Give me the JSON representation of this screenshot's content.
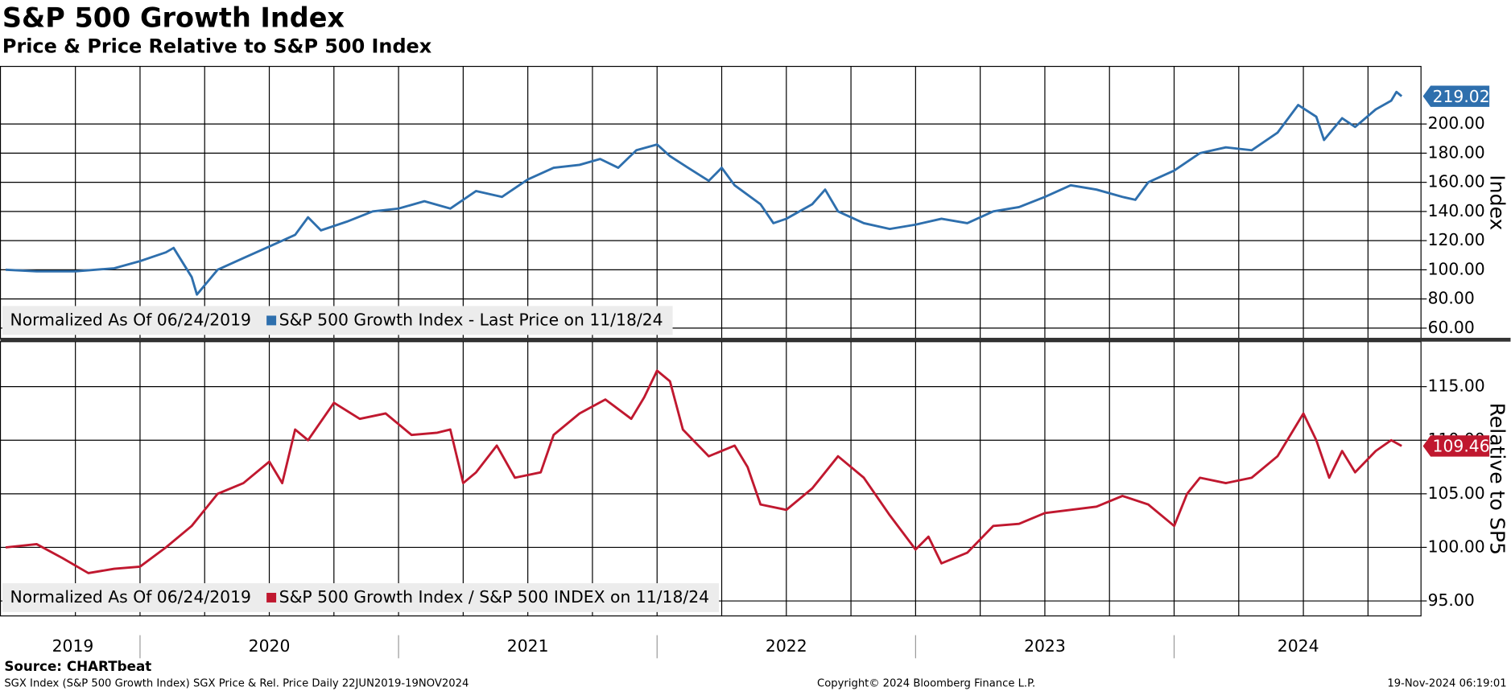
{
  "title": "S&P 500 Growth Index",
  "subtitle": "Price & Price Relative to S&P 500 Index",
  "source": "Source: CHARTbeat",
  "footer_left": "SGX Index (S&P 500 Growth Index) SGX Price & Rel. Price  Daily 22JUN2019-19NOV2024",
  "copyright": "Copyright© 2024 Bloomberg Finance L.P.",
  "timestamp": "19-Nov-2024 06:19:01",
  "x_grid": [
    2019.75,
    2020,
    2020.25,
    2020.5,
    2020.75,
    2021,
    2021.25,
    2021.5,
    2021.75,
    2022,
    2022.25,
    2022.5,
    2022.75,
    2023,
    2023.25,
    2023.5,
    2023.75,
    2024,
    2024.25,
    2024.5,
    2024.75
  ],
  "chart_data": [
    {
      "type": "line",
      "y_label": "Index",
      "note": "Normalized As Of 06/24/2019",
      "xlim": [
        2019.46,
        2024.955
      ],
      "ylim": [
        52.7,
        239.5
      ],
      "yticks": [
        {
          "value": 60,
          "label": "60.00"
        },
        {
          "value": 80,
          "label": "80.00"
        },
        {
          "value": 100,
          "label": "100.00"
        },
        {
          "value": 120,
          "label": "120.00"
        },
        {
          "value": 140,
          "label": "140.00"
        },
        {
          "value": 160,
          "label": "160.00"
        },
        {
          "value": 180,
          "label": "180.00"
        },
        {
          "value": 200,
          "label": "200.00"
        }
      ],
      "x": [
        2019.48,
        2019.6,
        2019.75,
        2019.9,
        2020.0,
        2020.1,
        2020.13,
        2020.2,
        2020.22,
        2020.3,
        2020.4,
        2020.5,
        2020.6,
        2020.65,
        2020.7,
        2020.8,
        2020.9,
        2021.0,
        2021.1,
        2021.2,
        2021.3,
        2021.4,
        2021.5,
        2021.6,
        2021.7,
        2021.78,
        2021.85,
        2021.92,
        2022.0,
        2022.05,
        2022.12,
        2022.2,
        2022.25,
        2022.3,
        2022.4,
        2022.45,
        2022.5,
        2022.6,
        2022.65,
        2022.7,
        2022.8,
        2022.9,
        2023.0,
        2023.1,
        2023.2,
        2023.3,
        2023.4,
        2023.5,
        2023.6,
        2023.7,
        2023.8,
        2023.85,
        2023.9,
        2024.0,
        2024.1,
        2024.2,
        2024.3,
        2024.4,
        2024.48,
        2024.55,
        2024.58,
        2024.65,
        2024.7,
        2024.78,
        2024.84,
        2024.86,
        2024.88
      ],
      "series": [
        {
          "name": "S&P 500 Growth Index - Last Price on 11/18/24",
          "color": "#2e6fad",
          "values": [
            100,
            99,
            99,
            101,
            106,
            112,
            115,
            95,
            83,
            100,
            108,
            116,
            124,
            136,
            127,
            133,
            140,
            142,
            147,
            142,
            154,
            150,
            162,
            170,
            172,
            176,
            170,
            182,
            186,
            178,
            170,
            161,
            170,
            158,
            145,
            132,
            135,
            145,
            155,
            140,
            132,
            128,
            131,
            135,
            132,
            140,
            143,
            150,
            158,
            155,
            150,
            148,
            160,
            168,
            180,
            184,
            182,
            194,
            213,
            205,
            189,
            204,
            198,
            210,
            216,
            222,
            219.02
          ]
        }
      ]
    },
    {
      "type": "line",
      "y_label": "Relative to SP5",
      "note": "Normalized As Of 06/24/2019",
      "xlim": [
        2019.46,
        2024.955
      ],
      "ylim": [
        93.6,
        119.2
      ],
      "yticks": [
        {
          "value": 95,
          "label": "95.00"
        },
        {
          "value": 100,
          "label": "100.00"
        },
        {
          "value": 105,
          "label": "105.00"
        },
        {
          "value": 110,
          "label": "110.00"
        },
        {
          "value": 115,
          "label": "115.00"
        }
      ],
      "xticks": [
        {
          "value": 2019.74,
          "label": "2019"
        },
        {
          "value": 2020.5,
          "label": "2020"
        },
        {
          "value": 2021.5,
          "label": "2021"
        },
        {
          "value": 2022.5,
          "label": "2022"
        },
        {
          "value": 2023.5,
          "label": "2023"
        },
        {
          "value": 2024.48,
          "label": "2024"
        }
      ],
      "x": [
        2019.48,
        2019.6,
        2019.7,
        2019.8,
        2019.9,
        2020.0,
        2020.1,
        2020.2,
        2020.3,
        2020.4,
        2020.5,
        2020.55,
        2020.6,
        2020.65,
        2020.75,
        2020.85,
        2020.95,
        2021.05,
        2021.15,
        2021.2,
        2021.25,
        2021.3,
        2021.38,
        2021.45,
        2021.55,
        2021.6,
        2021.7,
        2021.8,
        2021.9,
        2021.95,
        2022.0,
        2022.05,
        2022.1,
        2022.2,
        2022.3,
        2022.35,
        2022.4,
        2022.5,
        2022.6,
        2022.7,
        2022.8,
        2022.9,
        2023.0,
        2023.05,
        2023.1,
        2023.2,
        2023.3,
        2023.4,
        2023.5,
        2023.6,
        2023.7,
        2023.8,
        2023.9,
        2024.0,
        2024.05,
        2024.1,
        2024.2,
        2024.3,
        2024.4,
        2024.5,
        2024.55,
        2024.6,
        2024.65,
        2024.7,
        2024.78,
        2024.84,
        2024.88
      ],
      "series": [
        {
          "name": "S&P 500 Growth Index / S&P 500 INDEX on 11/18/24",
          "color": "#c0182f",
          "values": [
            100,
            100.3,
            99,
            97.6,
            98,
            98.2,
            100,
            102,
            105,
            106,
            108,
            106,
            111,
            110,
            113.5,
            112,
            112.5,
            110.5,
            110.7,
            111,
            106,
            107,
            109.5,
            106.5,
            107,
            110.5,
            112.5,
            113.8,
            112,
            114,
            116.5,
            115.5,
            111,
            108.5,
            109.5,
            107.5,
            104,
            103.5,
            105.5,
            108.5,
            106.5,
            103,
            99.8,
            101,
            98.5,
            99.5,
            102,
            102.2,
            103.2,
            103.5,
            103.8,
            104.8,
            104,
            102,
            105,
            106.5,
            106,
            106.5,
            108.5,
            112.5,
            110,
            106.5,
            109,
            107,
            109,
            110,
            109.46
          ]
        }
      ]
    }
  ]
}
